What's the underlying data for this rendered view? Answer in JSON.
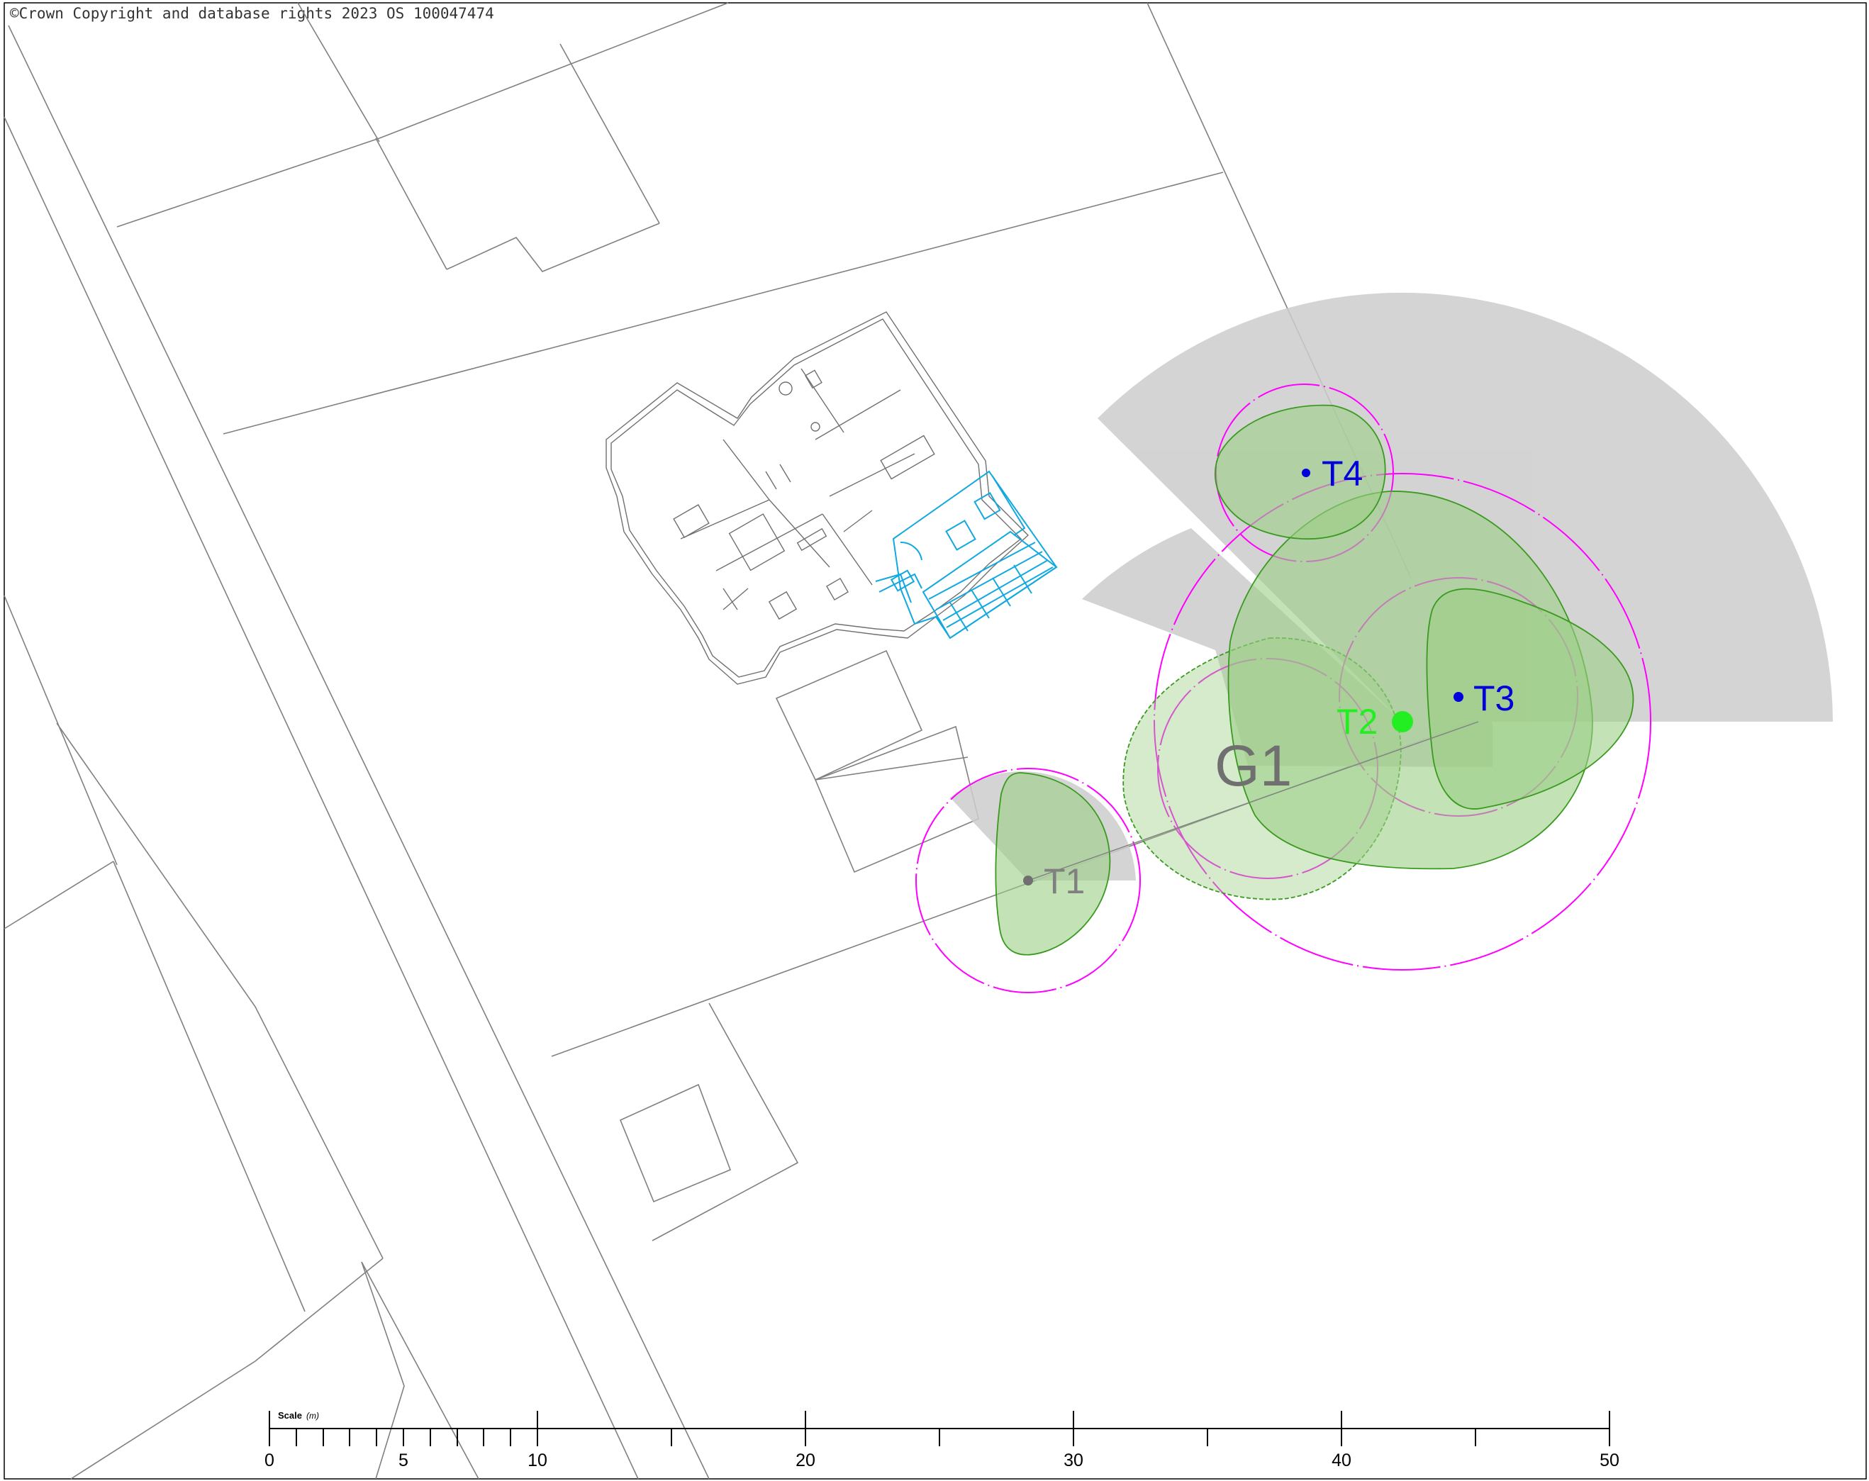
{
  "copyright": "©Crown Copyright and database rights 2023 OS 100047474",
  "colors": {
    "boundary": "#808080",
    "rpa_circle": "#ff00ff",
    "canopy_fill": "#9bcf85",
    "canopy_stroke": "#3a9a1f",
    "shadow": "#cccccc",
    "proposed_extension": "#12a8e0",
    "retained_tree_label": "#0000dd",
    "removed_tree_label": "#22ee22",
    "category_tree_label": "#808080"
  },
  "trees": [
    {
      "id": "t1",
      "label": "T1"
    },
    {
      "id": "t2",
      "label": "T2"
    },
    {
      "id": "t3",
      "label": "T3"
    },
    {
      "id": "t4",
      "label": "T4"
    }
  ],
  "groups": [
    {
      "id": "g1",
      "label": "G1"
    }
  ],
  "scale_bar": {
    "title": "Scale",
    "unit": "(m)",
    "labels": [
      "0",
      "5",
      "10",
      "20",
      "30",
      "40",
      "50"
    ]
  }
}
